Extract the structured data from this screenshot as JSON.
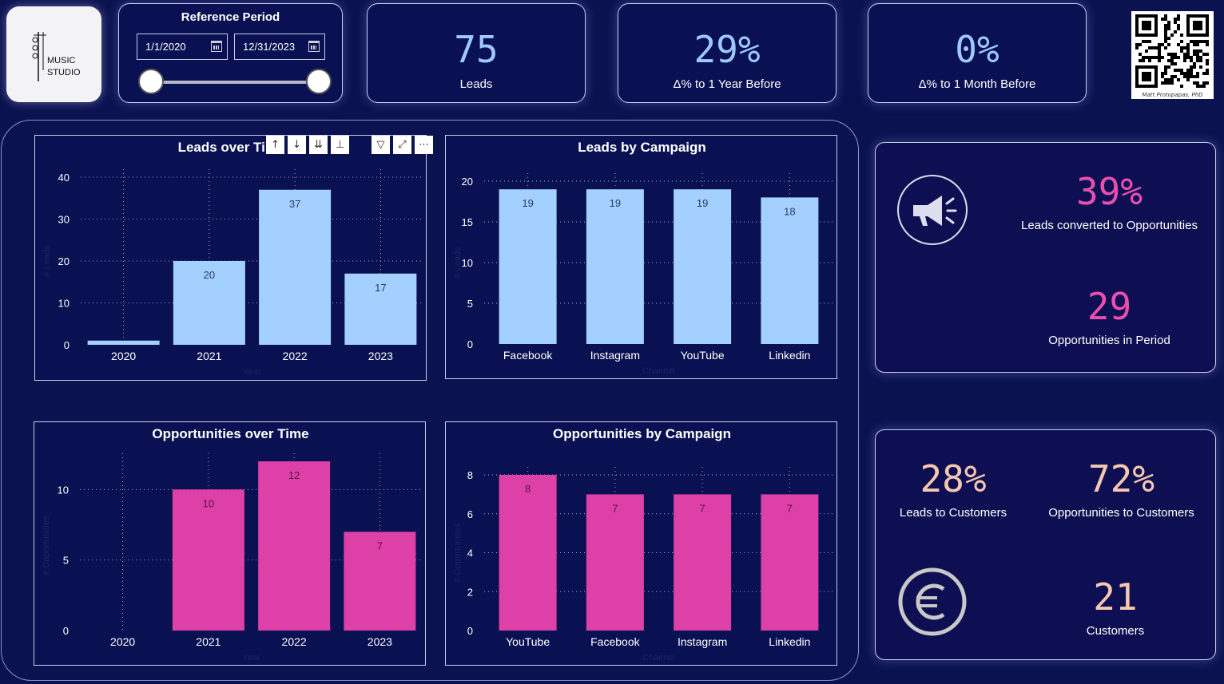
{
  "logo": {
    "line1": "MUSIC",
    "line2": "STUDIO"
  },
  "reference_period": {
    "title": "Reference Period",
    "start_date": "1/1/2020",
    "end_date": "12/31/2023",
    "slider_start_fraction": 0,
    "slider_end_fraction": 1
  },
  "kpis": [
    {
      "value": "75",
      "label": "Leads"
    },
    {
      "value": "29%",
      "label": "Δ% to 1 Year Before"
    },
    {
      "value": "0%",
      "label": "Δ% to 1 Month Before"
    }
  ],
  "qr_caption": "Matt Protopapas, PhD",
  "toolbar": {
    "icons": [
      "↑",
      "↓",
      "⇊",
      "⊥",
      "▽",
      "⤢",
      "⋯"
    ]
  },
  "conversion_card": {
    "pct": "39%",
    "pct_label": "Leads converted to Opportunities",
    "count": "29",
    "count_label": "Opportunities in Period"
  },
  "customer_card": {
    "leads_pct": "28%",
    "leads_label": "Leads to Customers",
    "opp_pct": "72%",
    "opp_label": "Opportunities to Customers",
    "customers": "21",
    "customers_label": "Customers"
  },
  "colors": {
    "leads": "#a3d0ff",
    "opps": "#dd40a6",
    "pink_text": "#ea4fb0",
    "peach_text": "#f6c7b1"
  },
  "chart_data": [
    {
      "type": "bar",
      "title": "Leads over Time",
      "xlabel": "Year",
      "ylabel": "# Leads",
      "categories": [
        "2020",
        "2021",
        "2022",
        "2023"
      ],
      "values": [
        1,
        20,
        37,
        17
      ],
      "data_labels": [
        "",
        "20",
        "37",
        "17"
      ],
      "yticks": [
        0,
        10,
        20,
        30,
        40
      ],
      "ylim": [
        0,
        40
      ]
    },
    {
      "type": "bar",
      "title": "Leads by Campaign",
      "xlabel": "Channel",
      "ylabel": "# Leads",
      "categories": [
        "Facebook",
        "Instagram",
        "YouTube",
        "Linkedin"
      ],
      "values": [
        19,
        19,
        19,
        18
      ],
      "data_labels": [
        "19",
        "19",
        "19",
        "18"
      ],
      "yticks": [
        0,
        5,
        10,
        15,
        20
      ],
      "ylim": [
        0,
        20
      ]
    },
    {
      "type": "bar",
      "title": "Opportunities over Time",
      "xlabel": "Year",
      "ylabel": "# Opportunities",
      "categories": [
        "2020",
        "2021",
        "2022",
        "2023"
      ],
      "values": [
        0,
        10,
        12,
        7
      ],
      "data_labels": [
        "",
        "10",
        "12",
        "7"
      ],
      "yticks": [
        0,
        5,
        10
      ],
      "ylim": [
        0,
        12
      ]
    },
    {
      "type": "bar",
      "title": "Opportunities by Campaign",
      "xlabel": "Channel",
      "ylabel": "# Opportunities",
      "categories": [
        "YouTube",
        "Facebook",
        "Instagram",
        "Linkedin"
      ],
      "values": [
        8,
        7,
        7,
        7
      ],
      "data_labels": [
        "8",
        "7",
        "7",
        "7"
      ],
      "yticks": [
        0,
        2,
        4,
        6,
        8
      ],
      "ylim": [
        0,
        8
      ]
    }
  ]
}
